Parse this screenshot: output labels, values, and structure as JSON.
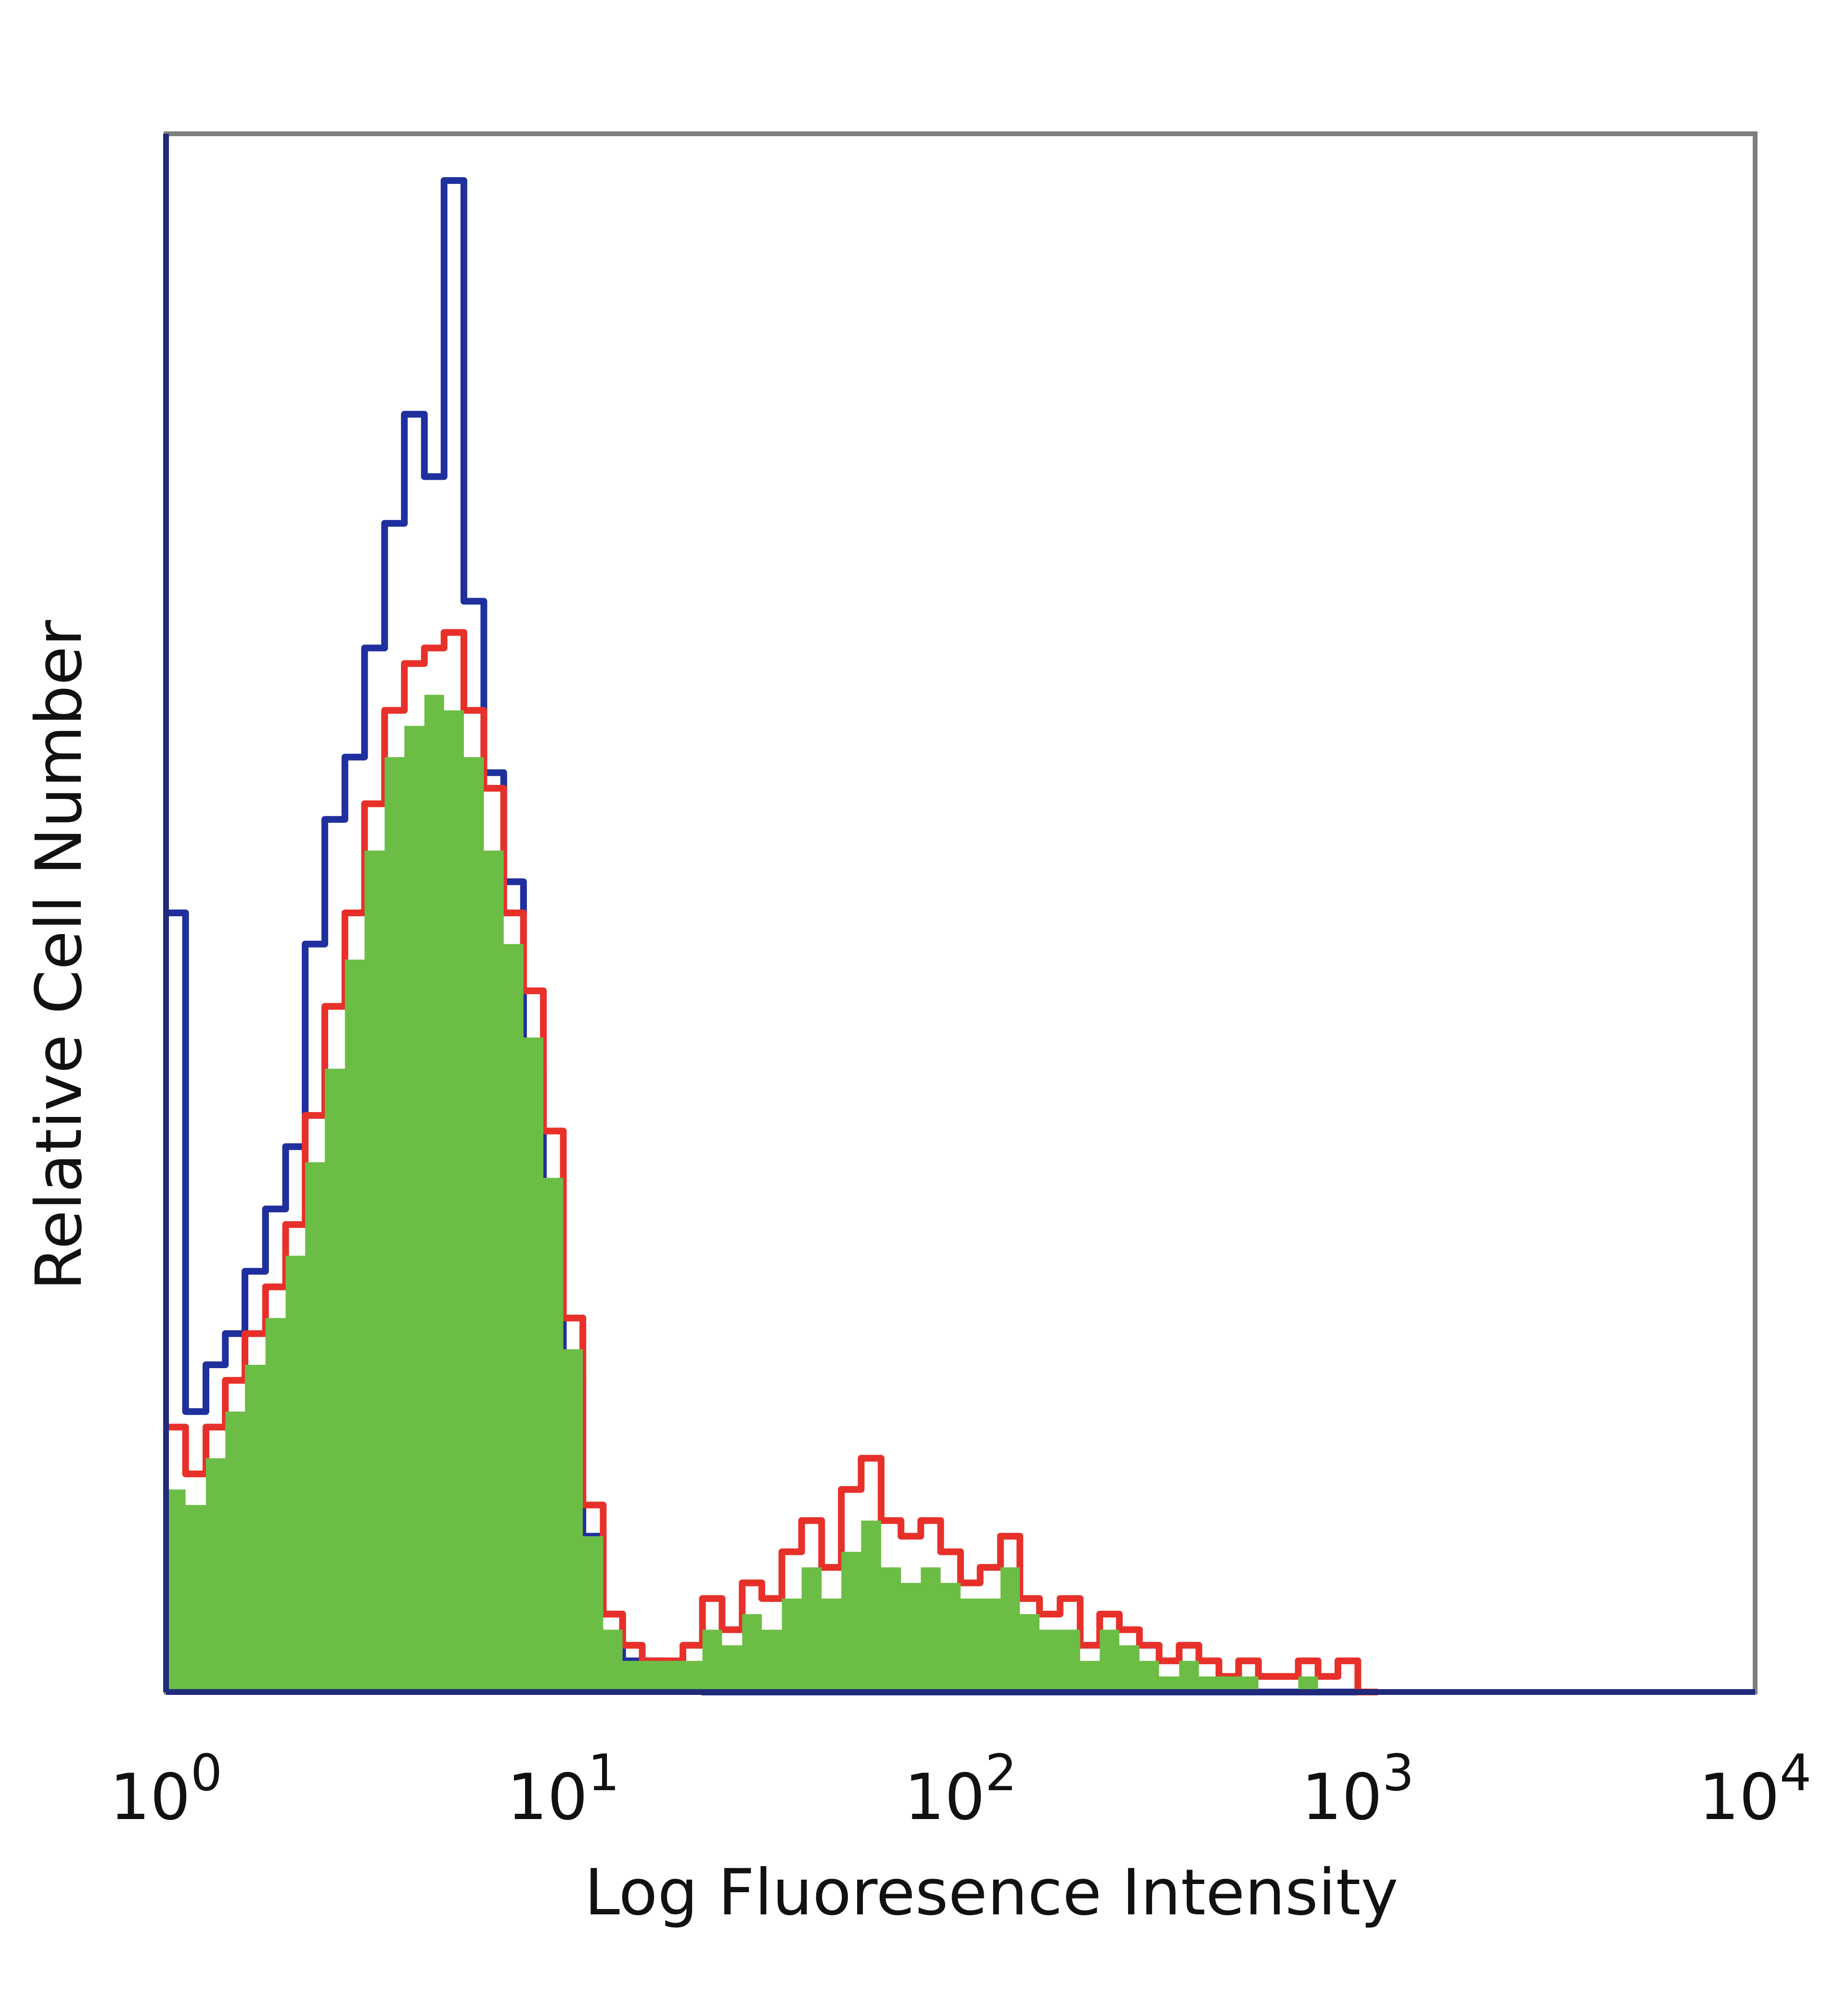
{
  "chart_data": {
    "type": "area",
    "title": "",
    "xlabel": "Log Fluoresence Intensity",
    "ylabel": "Relative Cell Number",
    "x_scale": "log",
    "xlim": [
      1,
      10000
    ],
    "ylim": [
      0,
      100
    ],
    "grid": false,
    "legend": "none",
    "x_ticks": [
      {
        "value": 1,
        "base": "10",
        "exp": "0"
      },
      {
        "value": 10,
        "base": "10",
        "exp": "1"
      },
      {
        "value": 100,
        "base": "10",
        "exp": "2"
      },
      {
        "value": 1000,
        "base": "10",
        "exp": "3"
      },
      {
        "value": 10000,
        "base": "10",
        "exp": "4"
      }
    ],
    "x": [
      1.0,
      1.12,
      1.26,
      1.41,
      1.58,
      1.78,
      2.0,
      2.24,
      2.51,
      2.82,
      3.16,
      3.55,
      3.98,
      4.47,
      5.01,
      5.62,
      6.31,
      7.08,
      7.94,
      8.91,
      10.0,
      11.2,
      12.6,
      14.1,
      15.8,
      17.8,
      20.0,
      22.4,
      25.1,
      28.2,
      31.6,
      35.5,
      39.8,
      44.7,
      50.1,
      56.2,
      63.1,
      70.8,
      79.4,
      89.1,
      100,
      112,
      126,
      141,
      158,
      178,
      200,
      224,
      251,
      282,
      316,
      355,
      398,
      447,
      501,
      562,
      631,
      708,
      794,
      891,
      1000
    ],
    "series": [
      {
        "name": "",
        "color": "#1f2f9e",
        "style": "line",
        "values": [
          50,
          18,
          21,
          23,
          27,
          31,
          35,
          48,
          56,
          60,
          67,
          75,
          82,
          78,
          97,
          70,
          59,
          52,
          40,
          32,
          20,
          10,
          5,
          2,
          2,
          1,
          1,
          0,
          0,
          0,
          0,
          0,
          0,
          0,
          0,
          0,
          0,
          0,
          0,
          0,
          0,
          0,
          0,
          0,
          0,
          0,
          0,
          0,
          0,
          0,
          0,
          0,
          0,
          0,
          0,
          0,
          0,
          0,
          0,
          0,
          0
        ]
      },
      {
        "name": "",
        "color": "#e8302a",
        "style": "line",
        "values": [
          17,
          14,
          17,
          20,
          23,
          26,
          30,
          37,
          44,
          50,
          57,
          63,
          66,
          67,
          68,
          63,
          58,
          50,
          45,
          36,
          24,
          12,
          5,
          3,
          2,
          2,
          3,
          6,
          4,
          7,
          6,
          9,
          11,
          8,
          13,
          15,
          11,
          10,
          11,
          9,
          7,
          8,
          10,
          6,
          5,
          6,
          3,
          5,
          4,
          3,
          2,
          3,
          2,
          1,
          2,
          1,
          1,
          2,
          1,
          2,
          0
        ]
      },
      {
        "name": "",
        "color": "#6cbd45",
        "style": "fill",
        "values": [
          13,
          12,
          15,
          18,
          21,
          24,
          28,
          34,
          40,
          47,
          54,
          60,
          62,
          64,
          63,
          60,
          54,
          48,
          42,
          33,
          22,
          10,
          4,
          2,
          2,
          2,
          2,
          4,
          3,
          5,
          4,
          6,
          8,
          6,
          9,
          11,
          8,
          7,
          8,
          7,
          6,
          6,
          8,
          5,
          4,
          4,
          2,
          4,
          3,
          2,
          1,
          2,
          1,
          1,
          1,
          0,
          0,
          1,
          0,
          0,
          0
        ]
      }
    ]
  }
}
